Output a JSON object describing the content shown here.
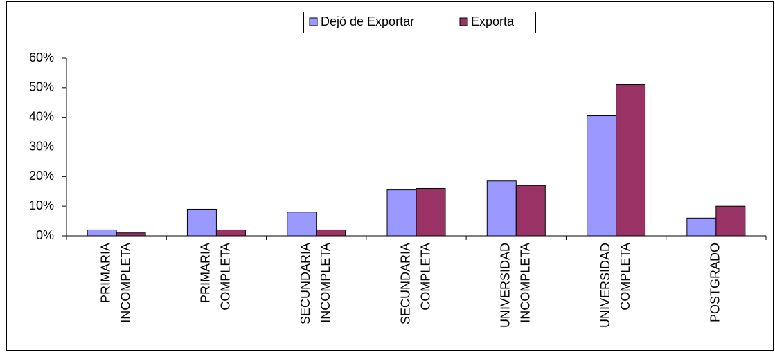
{
  "chart_data": {
    "type": "bar",
    "categories": [
      [
        "PRIMARIA",
        "INCOMPLETA"
      ],
      [
        "PRIMARIA",
        "COMPLETA"
      ],
      [
        "SECUNDARIA",
        "INCOMPLETA"
      ],
      [
        "SECUNDARIA",
        "COMPLETA"
      ],
      [
        "UNIVERSIDAD",
        "INCOMPLETA"
      ],
      [
        "UNIVERSIDAD",
        "COMPLETA"
      ],
      [
        "POSTGRADO"
      ]
    ],
    "series": [
      {
        "name": "Dejó de Exportar",
        "color": "#9999ff",
        "values": [
          2,
          9,
          8,
          15.5,
          18.5,
          40.5,
          6
        ]
      },
      {
        "name": "Exporta",
        "color": "#993366",
        "values": [
          1,
          2,
          2,
          16,
          17,
          51,
          10
        ]
      }
    ],
    "ylim": [
      0,
      60
    ],
    "yticks": [
      {
        "value": 0,
        "label": "0%"
      },
      {
        "value": 10,
        "label": "10%"
      },
      {
        "value": 20,
        "label": "20%"
      },
      {
        "value": 30,
        "label": "30%"
      },
      {
        "value": 40,
        "label": "40%"
      },
      {
        "value": 50,
        "label": "50%"
      },
      {
        "value": 60,
        "label": "60%"
      }
    ],
    "legend": "top",
    "grid": false
  }
}
